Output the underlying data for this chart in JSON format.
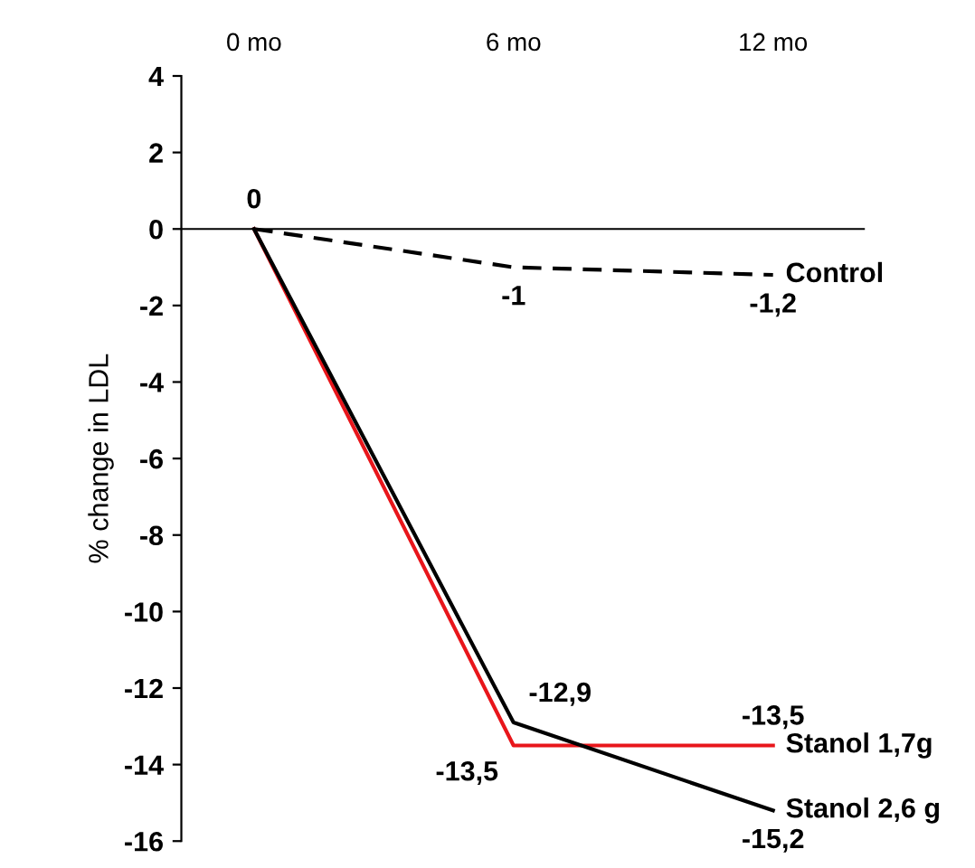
{
  "chart_data": {
    "type": "line",
    "ylabel": "% change in LDL",
    "categories": [
      "0 mo",
      "6 mo",
      "12 mo"
    ],
    "series": [
      {
        "name": "Control",
        "color": "#000000",
        "line_style": "dashed",
        "values": [
          0,
          -1,
          -1.2
        ],
        "value_labels": [
          "0",
          "-1",
          "-1,2"
        ]
      },
      {
        "name": "Stanol 1,7g",
        "color": "#e8161b",
        "line_style": "solid",
        "values": [
          0,
          -13.5,
          -13.5
        ],
        "value_labels": [
          null,
          "-13,5",
          "-13,5"
        ]
      },
      {
        "name": "Stanol 2,6 g",
        "color": "#000000",
        "line_style": "solid",
        "values": [
          0,
          -12.9,
          -15.2
        ],
        "value_labels": [
          null,
          "-12,9",
          "-15,2"
        ]
      }
    ],
    "ylim": [
      -16,
      4
    ],
    "yticks": [
      -16,
      -14,
      -12,
      -10,
      -8,
      -6,
      -4,
      -2,
      0,
      2,
      4
    ],
    "legend": false,
    "marker": "none"
  }
}
